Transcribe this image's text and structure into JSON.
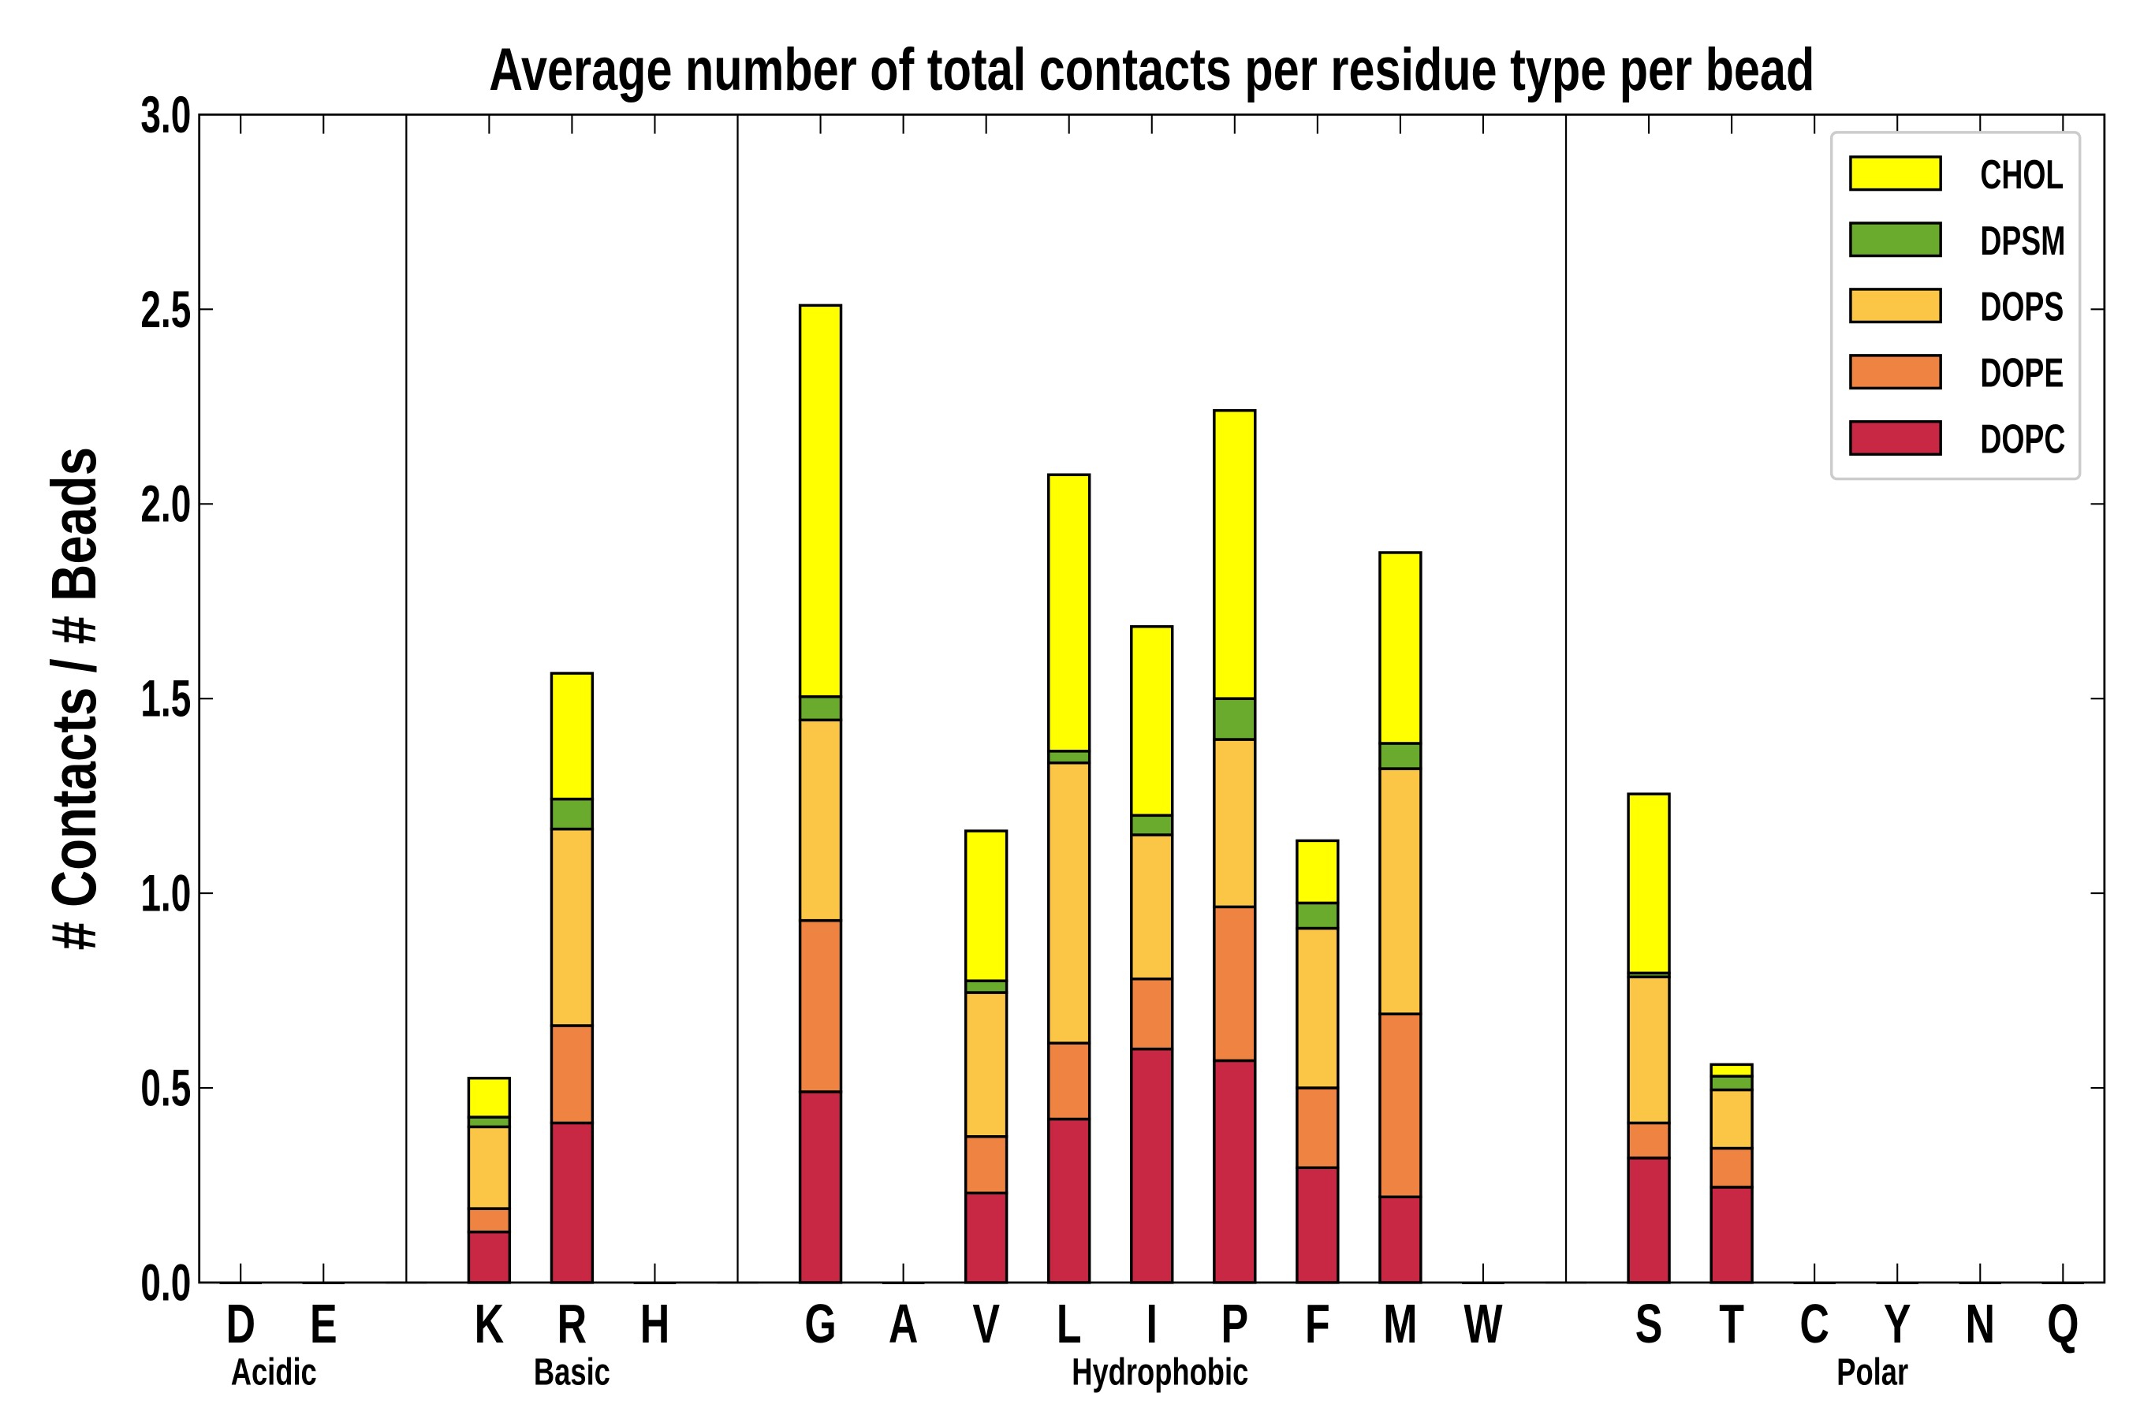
{
  "chart_data": {
    "type": "bar",
    "stacked": true,
    "title": "Average number of total contacts per residue type per bead",
    "xlabel": "",
    "ylabel": "# Contacts / # Beads",
    "ylim": [
      0,
      3.0
    ],
    "yticks": [
      "0.0",
      "0.5",
      "1.0",
      "1.5",
      "2.0",
      "2.5",
      "3.0"
    ],
    "ytick_values": [
      0,
      0.5,
      1.0,
      1.5,
      2.0,
      2.5,
      3.0
    ],
    "categories": [
      "D",
      "E",
      "K",
      "R",
      "H",
      "G",
      "A",
      "V",
      "L",
      "I",
      "P",
      "F",
      "M",
      "W",
      "S",
      "T",
      "C",
      "Y",
      "N",
      "Q"
    ],
    "category_slots": [
      0,
      1,
      3,
      4,
      5,
      7,
      8,
      9,
      10,
      11,
      12,
      13,
      14,
      15,
      17,
      18,
      19,
      20,
      21,
      22
    ],
    "separators": [
      2,
      6,
      16
    ],
    "groups": [
      {
        "label": "Acidic",
        "center": 0.4
      },
      {
        "label": "Basic",
        "center": 4.0
      },
      {
        "label": "Hydrophobic",
        "center": 11.1
      },
      {
        "label": "Polar",
        "center": 19.7
      }
    ],
    "series": [
      {
        "name": "DOPC",
        "color": "#c82843",
        "values": [
          0,
          0,
          0.13,
          0.41,
          0,
          0.49,
          0,
          0.23,
          0.42,
          0.6,
          0.57,
          0.295,
          0.22,
          0,
          0.32,
          0.245,
          0,
          0,
          0,
          0
        ]
      },
      {
        "name": "DOPE",
        "color": "#ef8341",
        "values": [
          0,
          0,
          0.06,
          0.25,
          0,
          0.44,
          0,
          0.145,
          0.195,
          0.18,
          0.395,
          0.205,
          0.47,
          0,
          0.09,
          0.1,
          0,
          0,
          0,
          0
        ]
      },
      {
        "name": "DOPS",
        "color": "#fbc545",
        "values": [
          0,
          0,
          0.21,
          0.505,
          0,
          0.515,
          0,
          0.37,
          0.72,
          0.37,
          0.43,
          0.41,
          0.63,
          0,
          0.375,
          0.15,
          0,
          0,
          0,
          0
        ]
      },
      {
        "name": "DPSM",
        "color": "#6aaa2c",
        "values": [
          0,
          0,
          0.025,
          0.077,
          0,
          0.06,
          0,
          0.03,
          0.03,
          0.05,
          0.105,
          0.065,
          0.065,
          0,
          0.01,
          0.035,
          0,
          0,
          0,
          0
        ]
      },
      {
        "name": "CHOL",
        "color": "#ffff00",
        "values": [
          0,
          0,
          0.1,
          0.323,
          0,
          1.005,
          0,
          0.385,
          0.71,
          0.485,
          0.74,
          0.16,
          0.49,
          0,
          0.46,
          0.03,
          0,
          0,
          0,
          0
        ]
      }
    ],
    "legend": {
      "placement": "top-right",
      "order": [
        "CHOL",
        "DPSM",
        "DOPS",
        "DOPE",
        "DOPC"
      ]
    },
    "grid": false
  }
}
